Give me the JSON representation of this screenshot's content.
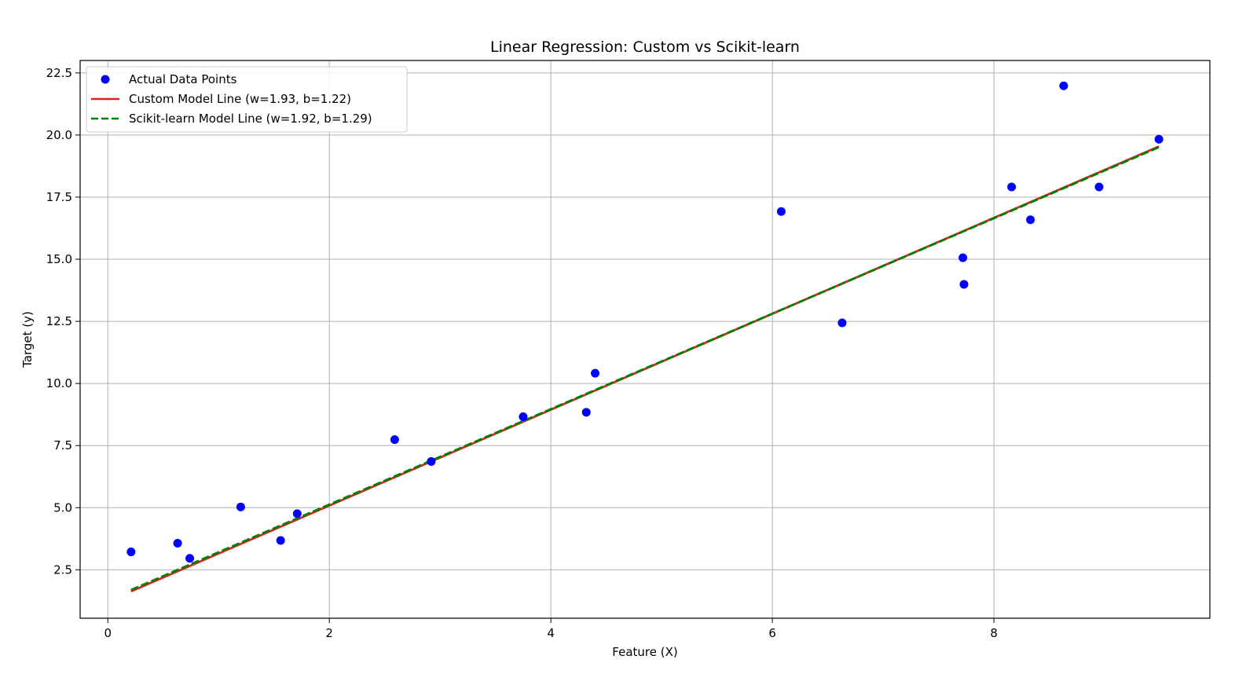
{
  "chart_data": {
    "type": "scatter",
    "title": "Linear Regression: Custom vs Scikit-learn",
    "xlabel": "Feature (X)",
    "ylabel": "Target (y)",
    "xlim": [
      -0.25,
      9.95
    ],
    "ylim": [
      0.55,
      23.0
    ],
    "x_ticks": [
      0,
      2,
      4,
      6,
      8
    ],
    "x_tick_labels": [
      "0",
      "2",
      "4",
      "6",
      "8"
    ],
    "y_ticks": [
      2.5,
      5.0,
      7.5,
      10.0,
      12.5,
      15.0,
      17.5,
      20.0,
      22.5
    ],
    "y_tick_labels": [
      "2.5",
      "5.0",
      "7.5",
      "10.0",
      "12.5",
      "15.0",
      "17.5",
      "20.0",
      "22.5"
    ],
    "grid": true,
    "legend_position": "top-left",
    "series": [
      {
        "name": "Actual Data Points",
        "kind": "scatter",
        "color": "#0000ff",
        "points": [
          [
            0.21,
            3.22
          ],
          [
            0.63,
            3.57
          ],
          [
            0.74,
            2.96
          ],
          [
            1.2,
            5.03
          ],
          [
            1.56,
            3.68
          ],
          [
            1.71,
            4.76
          ],
          [
            2.59,
            7.74
          ],
          [
            2.92,
            6.86
          ],
          [
            3.75,
            8.66
          ],
          [
            4.32,
            8.84
          ],
          [
            4.4,
            10.41
          ],
          [
            6.08,
            16.92
          ],
          [
            6.63,
            12.44
          ],
          [
            7.72,
            15.06
          ],
          [
            7.73,
            13.99
          ],
          [
            8.16,
            17.91
          ],
          [
            8.33,
            16.59
          ],
          [
            8.63,
            21.98
          ],
          [
            8.95,
            17.91
          ],
          [
            9.49,
            19.83
          ]
        ]
      },
      {
        "name": "Custom Model Line (w=1.93, b=1.22)",
        "kind": "line",
        "style": "solid",
        "color": "#d62728",
        "x": [
          0.21,
          9.49
        ],
        "y": [
          1.63,
          19.54
        ]
      },
      {
        "name": "Scikit-learn Model Line (w=1.92, b=1.29)",
        "kind": "line",
        "style": "dashed",
        "color": "#008000",
        "x": [
          0.21,
          9.49
        ],
        "y": [
          1.69,
          19.51
        ]
      }
    ]
  }
}
